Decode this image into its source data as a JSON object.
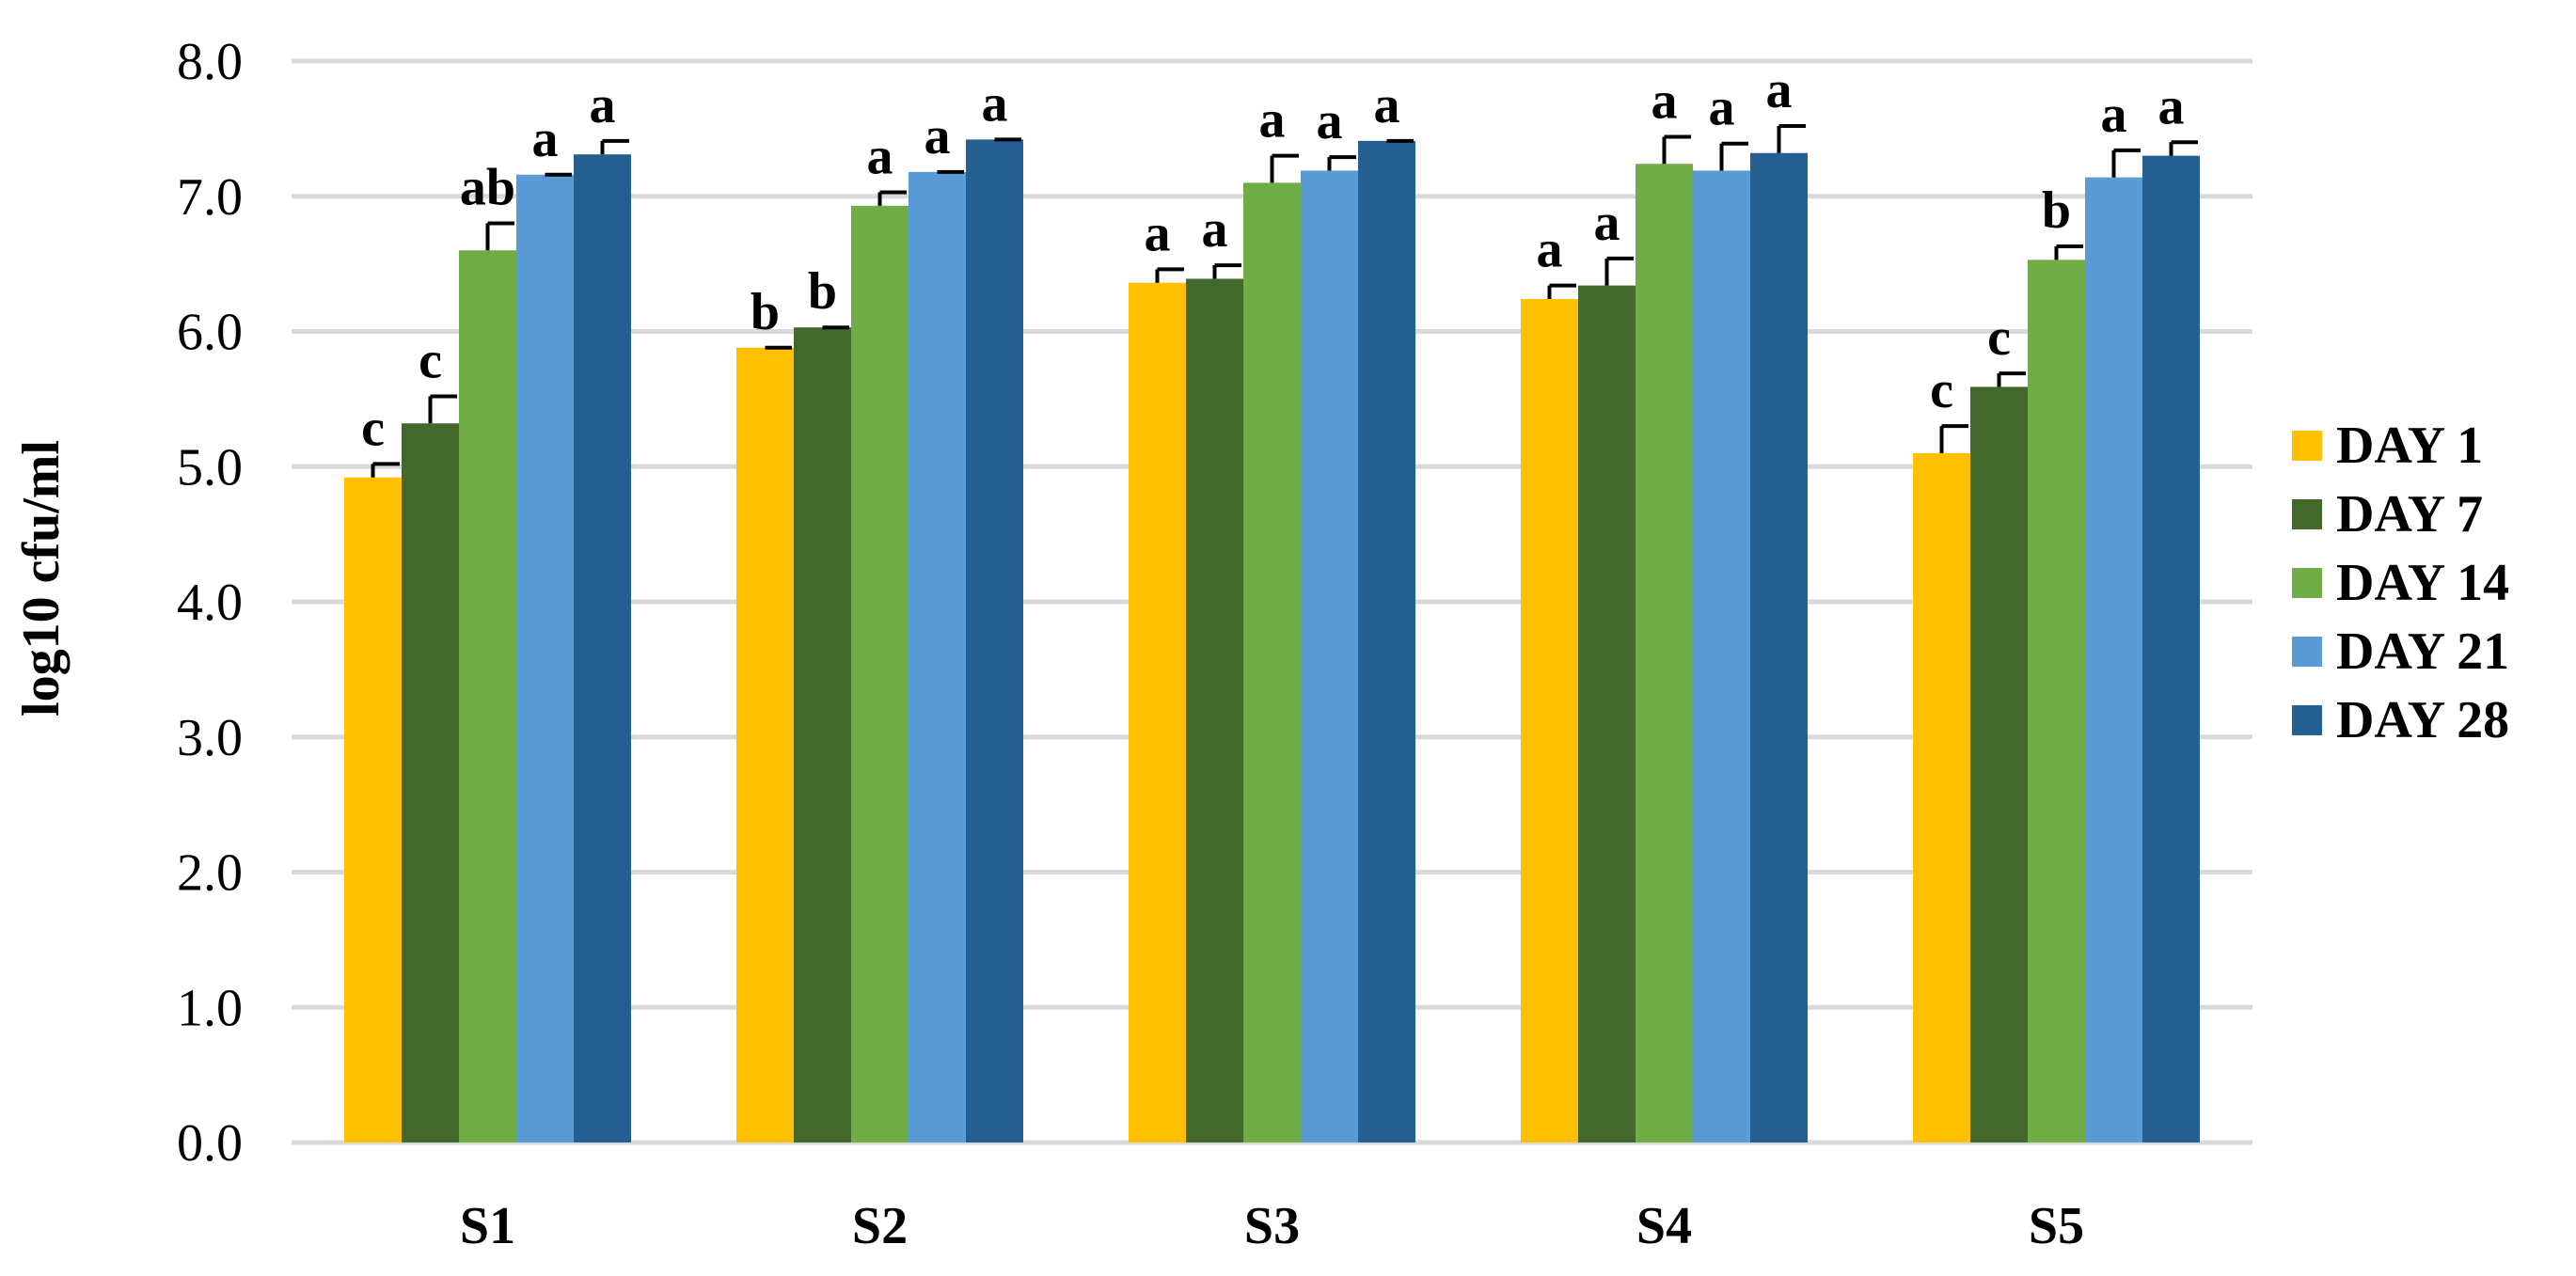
{
  "chart_data": {
    "type": "bar",
    "title": "",
    "xlabel": "",
    "ylabel": "log10 cfu/ml",
    "ylim": [
      0,
      8
    ],
    "yticks": [
      "0.0",
      "1.0",
      "2.0",
      "3.0",
      "4.0",
      "5.0",
      "6.0",
      "7.0",
      "8.0"
    ],
    "grid": true,
    "legend_position": "right",
    "categories": [
      "S1",
      "S2",
      "S3",
      "S4",
      "S5"
    ],
    "series": [
      {
        "name": "DAY 1",
        "color": "#ffc000",
        "values": [
          4.92,
          5.88,
          6.36,
          6.24,
          5.1
        ],
        "errors": [
          0.1,
          0.0,
          0.1,
          0.1,
          0.2
        ],
        "labels": [
          "c",
          "b",
          "a",
          "a",
          "c"
        ]
      },
      {
        "name": "DAY 7",
        "color": "#43682b",
        "values": [
          5.32,
          6.03,
          6.39,
          6.34,
          5.59
        ],
        "errors": [
          0.2,
          0.0,
          0.1,
          0.2,
          0.1
        ],
        "labels": [
          "c",
          "b",
          "a",
          "a",
          "c"
        ]
      },
      {
        "name": "DAY 14",
        "color": "#70ad47",
        "values": [
          6.6,
          6.93,
          7.1,
          7.24,
          6.53
        ],
        "errors": [
          0.2,
          0.1,
          0.2,
          0.2,
          0.1
        ],
        "labels": [
          "ab",
          "a",
          "a",
          "a",
          "b"
        ]
      },
      {
        "name": "DAY 21",
        "color": "#5b9bd5",
        "values": [
          7.16,
          7.18,
          7.19,
          7.19,
          7.14
        ],
        "errors": [
          0.0,
          0.0,
          0.1,
          0.2,
          0.2
        ],
        "labels": [
          "a",
          "a",
          "a",
          "a",
          "a"
        ]
      },
      {
        "name": "DAY 28",
        "color": "#255e91",
        "values": [
          7.31,
          7.42,
          7.41,
          7.32,
          7.3
        ],
        "errors": [
          0.1,
          0.0,
          0.0,
          0.2,
          0.1
        ],
        "labels": [
          "a",
          "a",
          "a",
          "a",
          "a"
        ]
      }
    ]
  }
}
